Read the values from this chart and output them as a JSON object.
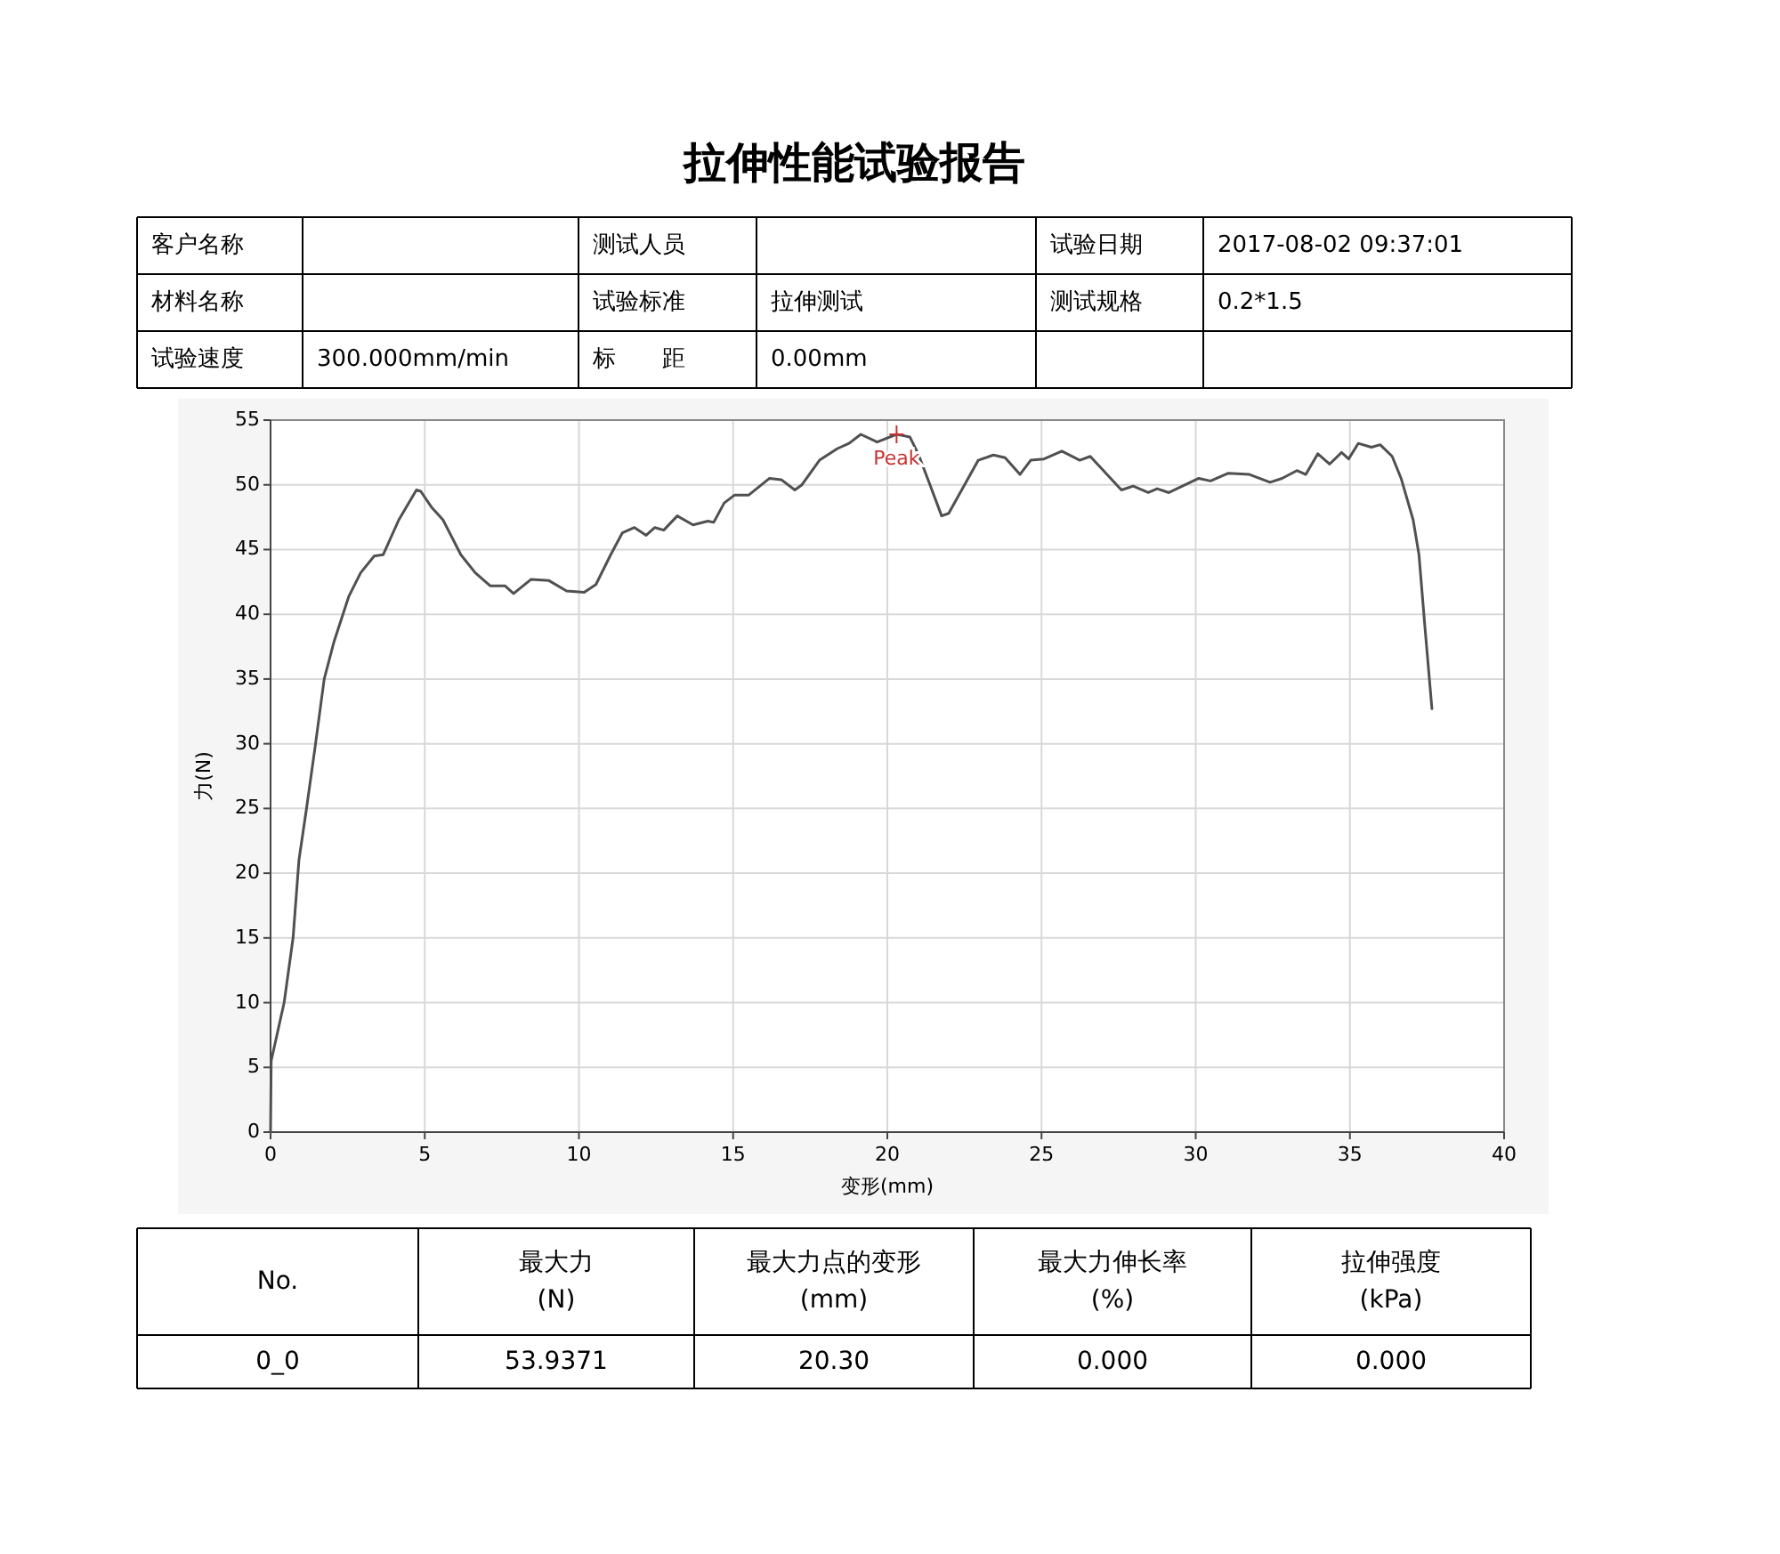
{
  "chart_data": {
    "type": "line",
    "title": "拉伸性能试验报告",
    "xlabel": "变形(mm)",
    "ylabel": "力(N)",
    "xlim": [
      0,
      40
    ],
    "xticks": [
      0,
      5,
      10,
      15,
      20,
      25,
      30,
      35,
      40
    ],
    "ylim": [
      0,
      55
    ],
    "yticks": [
      0,
      5,
      10,
      15,
      20,
      25,
      30,
      35,
      40,
      45,
      50,
      55
    ],
    "grid": true,
    "marker": "none",
    "line_style": "solid",
    "series": [
      {
        "color": "#505050",
        "x": [
          0,
          0.02,
          0.44,
          0.73,
          0.92,
          1.16,
          1.43,
          1.74,
          2.06,
          2.54,
          2.92,
          3.36,
          3.65,
          4.16,
          4.73,
          4.87,
          5.21,
          5.59,
          6.17,
          6.64,
          7.12,
          7.6,
          7.88,
          8.45,
          9.03,
          9.6,
          10.17,
          10.55,
          11.03,
          11.41,
          11.8,
          12.18,
          12.46,
          12.75,
          13.19,
          13.7,
          14.18,
          14.37,
          14.71,
          15.04,
          15.5,
          16.18,
          16.56,
          17.0,
          17.23,
          17.8,
          18.38,
          18.76,
          19.14,
          19.67,
          20.3,
          20.73,
          21.0,
          21.4,
          21.76,
          21.99,
          22.95,
          23.44,
          23.82,
          24.3,
          24.65,
          25.08,
          25.66,
          26.24,
          26.58,
          27.59,
          27.97,
          28.46,
          28.75,
          29.13,
          30.1,
          30.48,
          31.06,
          31.74,
          32.41,
          32.8,
          33.28,
          33.57,
          33.96,
          34.34,
          34.73,
          34.96,
          35.27,
          35.7,
          35.98,
          36.37,
          36.66,
          37.05,
          37.24,
          37.43,
          37.66
        ],
        "values": [
          0,
          5.5,
          10,
          15,
          21,
          24.9,
          29.5,
          35,
          37.9,
          41.4,
          43.2,
          44.5,
          44.6,
          47.3,
          49.6,
          49.5,
          48.3,
          47.3,
          44.6,
          43.2,
          42.2,
          42.2,
          41.6,
          42.7,
          42.6,
          41.8,
          41.7,
          42.3,
          44.6,
          46.3,
          46.7,
          46.1,
          46.7,
          46.5,
          47.6,
          46.9,
          47.2,
          47.1,
          48.6,
          49.2,
          49.2,
          50.5,
          50.4,
          49.6,
          50.0,
          51.9,
          52.8,
          53.2,
          53.9,
          53.3,
          53.9,
          53.7,
          52.4,
          49.9,
          47.6,
          47.8,
          51.9,
          52.3,
          52.1,
          50.8,
          51.9,
          52.0,
          52.6,
          51.9,
          52.2,
          49.6,
          49.9,
          49.4,
          49.7,
          49.4,
          50.5,
          50.3,
          50.9,
          50.8,
          50.2,
          50.5,
          51.1,
          50.8,
          52.4,
          51.6,
          52.5,
          52.0,
          53.2,
          52.9,
          53.1,
          52.2,
          50.5,
          47.3,
          44.6,
          39.1,
          32.7
        ]
      }
    ],
    "annotations": [
      {
        "text": "Peak",
        "x": 20.3,
        "y": 53.9
      },
      "客户名称",
      "测试人员",
      "试验日期",
      "2017-08-02 09:37:01",
      "材料名称",
      "试验标准",
      "拉伸测试",
      "测试规格",
      "0.2*1.5",
      "试验速度",
      "300.000mm/min",
      "标　　距",
      "0.00mm",
      "No.",
      "最大力\n(N)",
      "最大力点的变形\n(mm)",
      "最大力伸长率\n(%)",
      "拉伸强度\n(kPa)",
      "0_0",
      "53.9371",
      "20.30",
      "0.000",
      "0.000"
    ]
  }
}
